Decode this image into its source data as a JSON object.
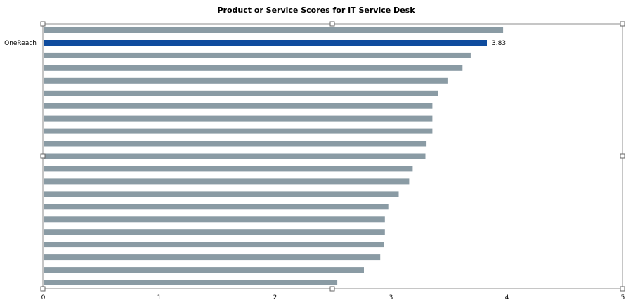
{
  "chart_data": {
    "type": "bar",
    "orientation": "horizontal",
    "title": "Product or Service Scores for IT Service Desk",
    "xlabel": "",
    "ylabel": "",
    "xlim": [
      0,
      5
    ],
    "x_ticks": [
      "0",
      "1",
      "2",
      "3",
      "4",
      "5"
    ],
    "grid": true,
    "categories": [
      "",
      "OneReach",
      "",
      "",
      "",
      "",
      "",
      "",
      "",
      "",
      "",
      "",
      "",
      "",
      "",
      "",
      "",
      "",
      "",
      "",
      ""
    ],
    "values": [
      3.97,
      3.83,
      3.69,
      3.62,
      3.49,
      3.41,
      3.36,
      3.36,
      3.36,
      3.31,
      3.3,
      3.19,
      3.16,
      3.07,
      2.98,
      2.95,
      2.95,
      2.94,
      2.91,
      2.77,
      2.54
    ],
    "highlight": {
      "category": "OneReach",
      "value_label": "3.83"
    },
    "colors": {
      "bar": "#8A9BA4",
      "highlight": "#0F4C9E",
      "grid": "#000000"
    }
  }
}
